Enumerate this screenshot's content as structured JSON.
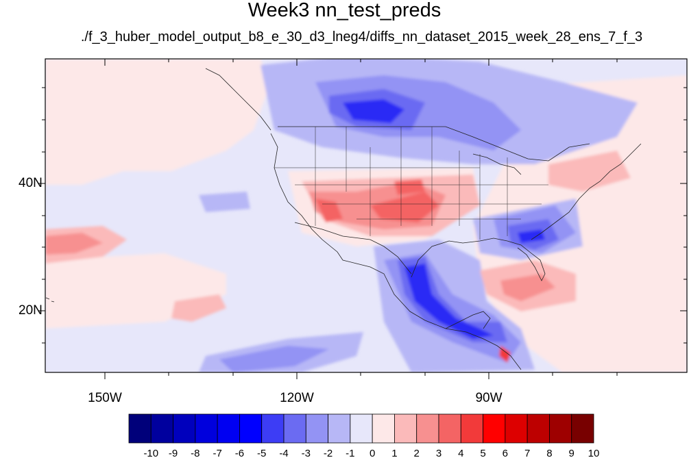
{
  "title": "Week3 nn_test_preds",
  "subtitle": "./f_3_huber_model_output_b8_e_30_d3_lneg4/diffs_nn_dataset_2015_week_28_ens_7_f_3",
  "map": {
    "lat_labels": [
      "40N",
      "20N"
    ],
    "lon_labels": [
      "150W",
      "120W",
      "90W"
    ]
  },
  "colorbar": {
    "labels": [
      "-10",
      "-9",
      "-8",
      "-7",
      "-6",
      "-5",
      "-4",
      "-3",
      "-2",
      "-1",
      "0",
      "1",
      "2",
      "3",
      "4",
      "5",
      "6",
      "7",
      "8",
      "9",
      "10"
    ],
    "colors": [
      "#00007a",
      "#00009e",
      "#0000bd",
      "#0000dd",
      "#0000f2",
      "#0000ff",
      "#3d3df5",
      "#6b6bf2",
      "#9393f4",
      "#b7b7f6",
      "#e7e7fa",
      "#fde8e8",
      "#fbbaba",
      "#f79090",
      "#f46464",
      "#f23a3a",
      "#ff0000",
      "#dd0000",
      "#bd0000",
      "#9e0000",
      "#780000"
    ]
  }
}
